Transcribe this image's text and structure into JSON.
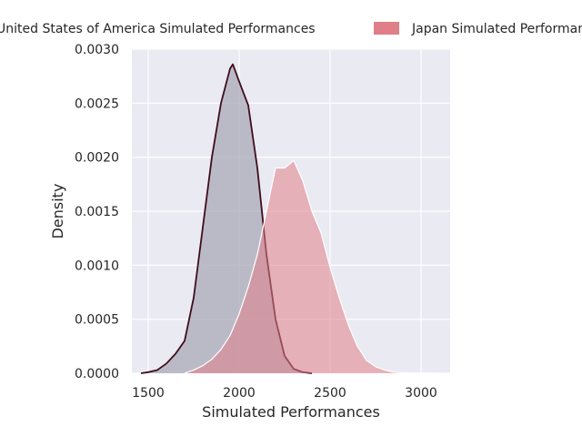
{
  "chart_data": {
    "type": "area",
    "title": "",
    "xlabel": "Simulated Performances",
    "ylabel": "Density",
    "xlim": [
      1410,
      3160
    ],
    "ylim": [
      0,
      0.003
    ],
    "grid": true,
    "legend_position": "top",
    "x_ticks": [
      1500,
      2000,
      2500,
      3000
    ],
    "x_tick_labels": [
      "1500",
      "2000",
      "2500",
      "3000"
    ],
    "y_ticks": [
      0,
      0.0005,
      0.001,
      0.0015,
      0.002,
      0.0025,
      0.003
    ],
    "y_tick_labels": [
      "0.0000",
      "0.0005",
      "0.0010",
      "0.0015",
      "0.0020",
      "0.0025",
      "0.0030"
    ],
    "series": [
      {
        "name": "United States of America Simulated Performances",
        "color": "#3f0d1c",
        "fill": "#a9a9b8",
        "x": [
          1460,
          1500,
          1550,
          1600,
          1650,
          1700,
          1750,
          1800,
          1850,
          1900,
          1950,
          1965,
          2000,
          2050,
          2100,
          2150,
          2200,
          2250,
          2300,
          2350,
          2400
        ],
        "y": [
          0,
          1e-05,
          3e-05,
          9e-05,
          0.00018,
          0.0003,
          0.0007,
          0.00135,
          0.002,
          0.0025,
          0.00282,
          0.00286,
          0.0027,
          0.00248,
          0.0019,
          0.0011,
          0.0005,
          0.00016,
          4e-05,
          1e-05,
          0
        ]
      },
      {
        "name": "Japan Simulated Performances",
        "color": "#ffffff",
        "fill": "#e07f88",
        "x": [
          1700,
          1750,
          1800,
          1850,
          1900,
          1950,
          2000,
          2050,
          2100,
          2150,
          2200,
          2250,
          2300,
          2350,
          2400,
          2450,
          2500,
          2550,
          2600,
          2650,
          2700,
          2750,
          2800,
          2850,
          2900,
          2950,
          3000,
          3050,
          3100
        ],
        "y": [
          0,
          3e-05,
          7e-05,
          0.00013,
          0.00022,
          0.00035,
          0.00055,
          0.0008,
          0.0011,
          0.0015,
          0.0019,
          0.0019,
          0.00197,
          0.00178,
          0.0015,
          0.0013,
          0.00098,
          0.0007,
          0.00045,
          0.00025,
          0.00012,
          6e-05,
          3e-05,
          1e-05,
          5e-06,
          3e-06,
          2e-06,
          1e-06,
          0
        ]
      }
    ]
  }
}
